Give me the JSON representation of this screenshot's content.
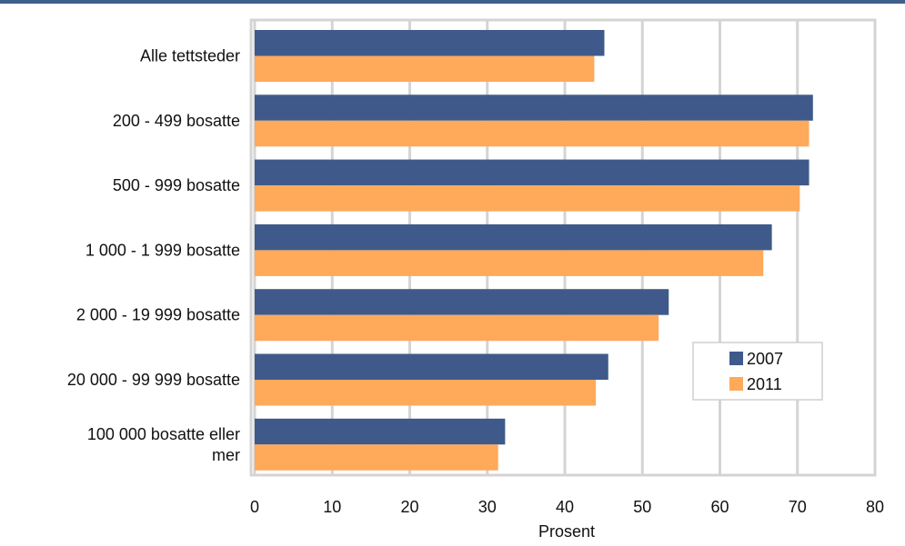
{
  "chart_data": {
    "type": "bar",
    "orientation": "horizontal",
    "categories": [
      [
        "Alle tettsteder"
      ],
      [
        "200 - 499 bosatte"
      ],
      [
        "500 - 999 bosatte"
      ],
      [
        "1 000 - 1 999 bosatte"
      ],
      [
        "2 000 - 19 999 bosatte"
      ],
      [
        "20 000 - 99 999 bosatte"
      ],
      [
        "100 000 bosatte eller",
        "mer"
      ]
    ],
    "series": [
      {
        "name": "2007",
        "color": "#3f5a8a",
        "values": [
          45.1,
          72.0,
          71.5,
          66.7,
          53.4,
          45.6,
          32.3
        ]
      },
      {
        "name": "2011",
        "color": "#ffa95a",
        "values": [
          43.8,
          71.5,
          70.3,
          65.6,
          52.1,
          44.0,
          31.4
        ]
      }
    ],
    "xlabel": "Prosent",
    "xlim": [
      0,
      80
    ],
    "xticks": [
      0,
      10,
      20,
      30,
      40,
      50,
      60,
      70,
      80
    ],
    "grid": true,
    "legend_position": "lower-right"
  }
}
